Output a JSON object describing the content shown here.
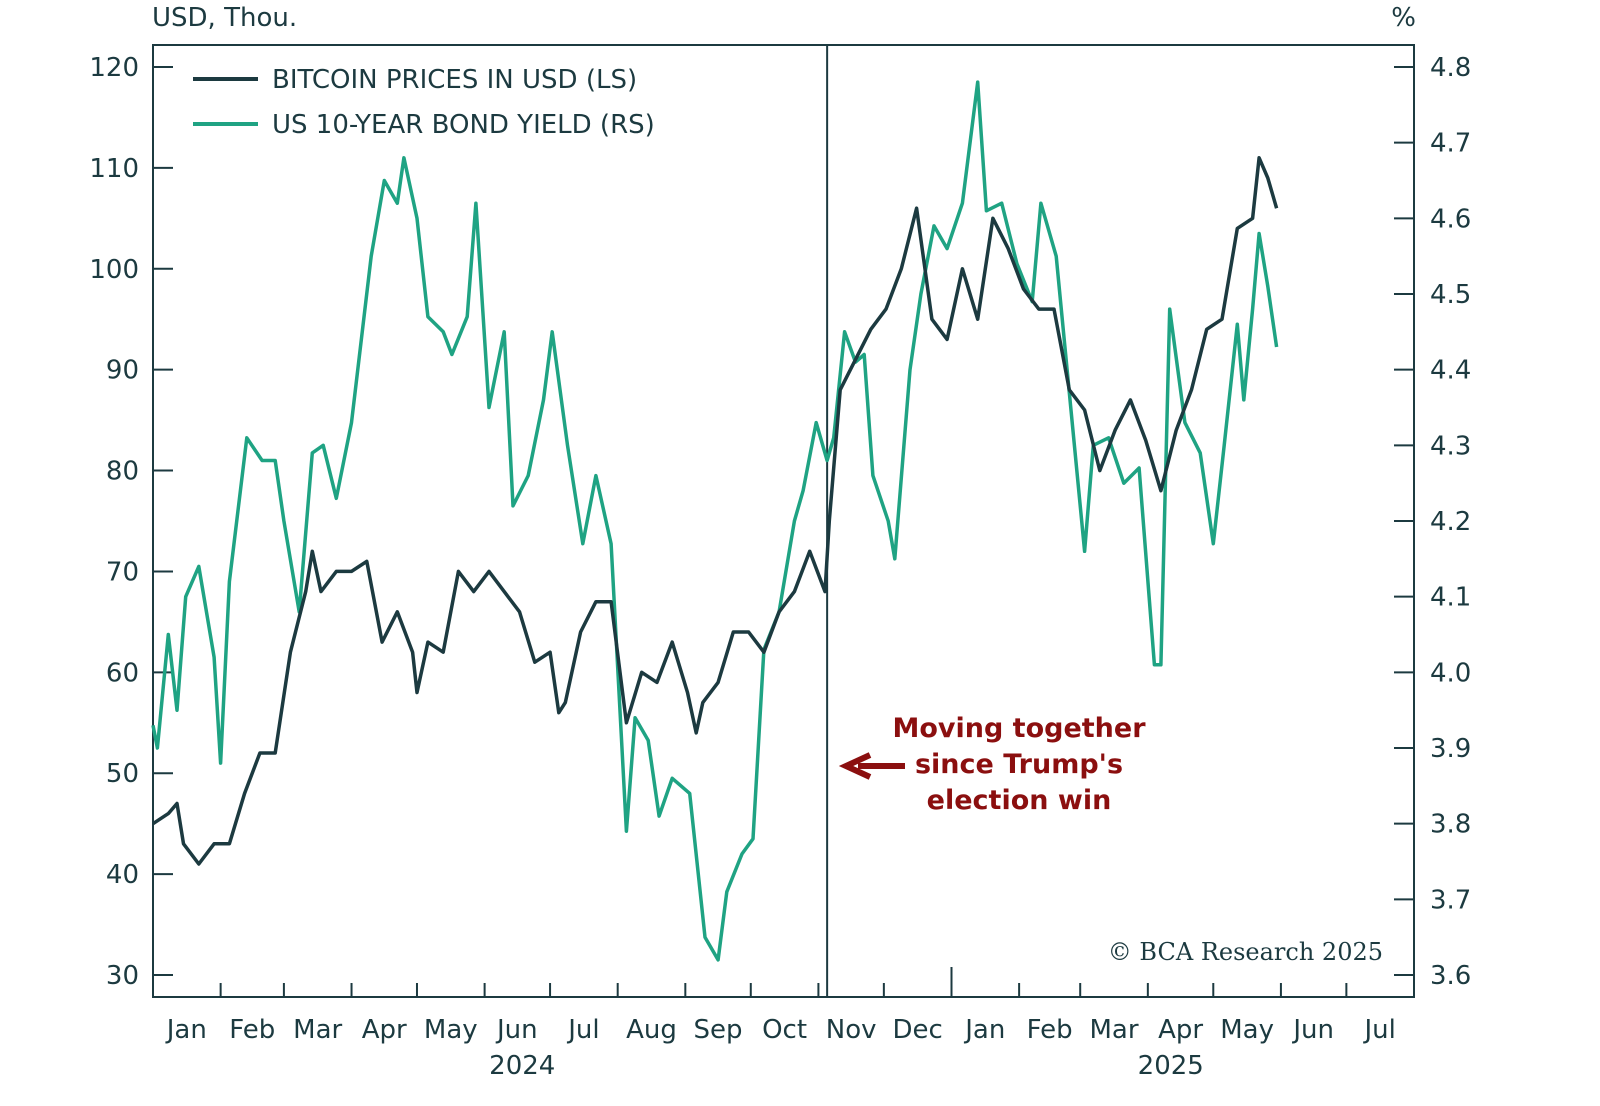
{
  "chart_data": {
    "type": "line",
    "title": "",
    "ylabel_left": "USD, Thou.",
    "ylabel_right": "%",
    "ylim_left": [
      30,
      120
    ],
    "yticks_left": [
      "30",
      "40",
      "50",
      "60",
      "70",
      "80",
      "90",
      "100",
      "110",
      "120"
    ],
    "ylim_right": [
      3.6,
      4.8
    ],
    "yticks_right": [
      "3.6",
      "3.7",
      "3.8",
      "3.9",
      "4.0",
      "4.1",
      "4.2",
      "4.3",
      "4.4",
      "4.5",
      "4.6",
      "4.7",
      "4.8"
    ],
    "xlim": [
      "2024-01-01",
      "2025-08-01"
    ],
    "xticks": [
      "Jan",
      "Feb",
      "Mar",
      "Apr",
      "May",
      "Jun",
      "Jul",
      "Aug",
      "Sep",
      "Oct",
      "Nov",
      "Dec",
      "Jan",
      "Feb",
      "Mar",
      "Apr",
      "May",
      "Jun",
      "Jul"
    ],
    "year_labels": [
      "2024",
      "2025"
    ],
    "grid": false,
    "legend_placement": "top-left",
    "vertical_marker_date": "2024-11-05",
    "annotation": [
      "Moving together",
      "since Trump's",
      "election win"
    ],
    "annotation_color": "#8b0f0f",
    "copyright": "© BCA Research 2025",
    "series": [
      {
        "name": "BITCOIN PRICES IN USD (LS)",
        "axis": "left",
        "color": "#1c3a40",
        "points": [
          [
            "2024-01-01",
            45
          ],
          [
            "2024-01-08",
            46
          ],
          [
            "2024-01-12",
            47
          ],
          [
            "2024-01-15",
            43
          ],
          [
            "2024-01-22",
            41
          ],
          [
            "2024-01-29",
            43
          ],
          [
            "2024-02-05",
            43
          ],
          [
            "2024-02-12",
            48
          ],
          [
            "2024-02-19",
            52
          ],
          [
            "2024-02-26",
            52
          ],
          [
            "2024-03-04",
            62
          ],
          [
            "2024-03-11",
            68
          ],
          [
            "2024-03-14",
            72
          ],
          [
            "2024-03-18",
            68
          ],
          [
            "2024-03-25",
            70
          ],
          [
            "2024-04-01",
            70
          ],
          [
            "2024-04-08",
            71
          ],
          [
            "2024-04-15",
            63
          ],
          [
            "2024-04-22",
            66
          ],
          [
            "2024-04-29",
            62
          ],
          [
            "2024-05-01",
            58
          ],
          [
            "2024-05-06",
            63
          ],
          [
            "2024-05-13",
            62
          ],
          [
            "2024-05-20",
            70
          ],
          [
            "2024-05-27",
            68
          ],
          [
            "2024-06-03",
            70
          ],
          [
            "2024-06-10",
            68
          ],
          [
            "2024-06-17",
            66
          ],
          [
            "2024-06-24",
            61
          ],
          [
            "2024-07-01",
            62
          ],
          [
            "2024-07-05",
            56
          ],
          [
            "2024-07-08",
            57
          ],
          [
            "2024-07-15",
            64
          ],
          [
            "2024-07-22",
            67
          ],
          [
            "2024-07-29",
            67
          ],
          [
            "2024-08-05",
            55
          ],
          [
            "2024-08-12",
            60
          ],
          [
            "2024-08-19",
            59
          ],
          [
            "2024-08-26",
            63
          ],
          [
            "2024-09-02",
            58
          ],
          [
            "2024-09-06",
            54
          ],
          [
            "2024-09-09",
            57
          ],
          [
            "2024-09-16",
            59
          ],
          [
            "2024-09-23",
            64
          ],
          [
            "2024-09-30",
            64
          ],
          [
            "2024-10-07",
            62
          ],
          [
            "2024-10-14",
            66
          ],
          [
            "2024-10-21",
            68
          ],
          [
            "2024-10-28",
            72
          ],
          [
            "2024-11-04",
            68
          ],
          [
            "2024-11-06",
            75
          ],
          [
            "2024-11-11",
            88
          ],
          [
            "2024-11-18",
            91
          ],
          [
            "2024-11-25",
            94
          ],
          [
            "2024-12-02",
            96
          ],
          [
            "2024-12-09",
            100
          ],
          [
            "2024-12-16",
            106
          ],
          [
            "2024-12-23",
            95
          ],
          [
            "2024-12-30",
            93
          ],
          [
            "2025-01-06",
            100
          ],
          [
            "2025-01-13",
            95
          ],
          [
            "2025-01-20",
            105
          ],
          [
            "2025-01-27",
            102
          ],
          [
            "2025-02-03",
            98
          ],
          [
            "2025-02-10",
            96
          ],
          [
            "2025-02-17",
            96
          ],
          [
            "2025-02-24",
            88
          ],
          [
            "2025-03-03",
            86
          ],
          [
            "2025-03-10",
            80
          ],
          [
            "2025-03-17",
            84
          ],
          [
            "2025-03-24",
            87
          ],
          [
            "2025-03-31",
            83
          ],
          [
            "2025-04-07",
            78
          ],
          [
            "2025-04-14",
            84
          ],
          [
            "2025-04-21",
            88
          ],
          [
            "2025-04-28",
            94
          ],
          [
            "2025-05-05",
            95
          ],
          [
            "2025-05-12",
            104
          ],
          [
            "2025-05-19",
            105
          ],
          [
            "2025-05-22",
            111
          ],
          [
            "2025-05-26",
            109
          ],
          [
            "2025-05-30",
            106
          ]
        ]
      },
      {
        "name": "US 10-YEAR BOND YIELD (RS)",
        "axis": "right",
        "color": "#1fa383",
        "points": [
          [
            "2024-01-01",
            3.93
          ],
          [
            "2024-01-03",
            3.9
          ],
          [
            "2024-01-08",
            4.05
          ],
          [
            "2024-01-12",
            3.95
          ],
          [
            "2024-01-16",
            4.1
          ],
          [
            "2024-01-22",
            4.14
          ],
          [
            "2024-01-29",
            4.02
          ],
          [
            "2024-02-01",
            3.88
          ],
          [
            "2024-02-05",
            4.12
          ],
          [
            "2024-02-13",
            4.31
          ],
          [
            "2024-02-20",
            4.28
          ],
          [
            "2024-02-26",
            4.28
          ],
          [
            "2024-03-01",
            4.2
          ],
          [
            "2024-03-08",
            4.08
          ],
          [
            "2024-03-14",
            4.29
          ],
          [
            "2024-03-19",
            4.3
          ],
          [
            "2024-03-25",
            4.23
          ],
          [
            "2024-04-01",
            4.33
          ],
          [
            "2024-04-10",
            4.55
          ],
          [
            "2024-04-16",
            4.65
          ],
          [
            "2024-04-22",
            4.62
          ],
          [
            "2024-04-25",
            4.68
          ],
          [
            "2024-05-01",
            4.6
          ],
          [
            "2024-05-06",
            4.47
          ],
          [
            "2024-05-13",
            4.45
          ],
          [
            "2024-05-17",
            4.42
          ],
          [
            "2024-05-24",
            4.47
          ],
          [
            "2024-05-28",
            4.62
          ],
          [
            "2024-06-03",
            4.35
          ],
          [
            "2024-06-10",
            4.45
          ],
          [
            "2024-06-14",
            4.22
          ],
          [
            "2024-06-21",
            4.26
          ],
          [
            "2024-06-28",
            4.36
          ],
          [
            "2024-07-02",
            4.45
          ],
          [
            "2024-07-09",
            4.3
          ],
          [
            "2024-07-16",
            4.17
          ],
          [
            "2024-07-22",
            4.26
          ],
          [
            "2024-07-29",
            4.17
          ],
          [
            "2024-08-05",
            3.79
          ],
          [
            "2024-08-09",
            3.94
          ],
          [
            "2024-08-15",
            3.91
          ],
          [
            "2024-08-20",
            3.81
          ],
          [
            "2024-08-26",
            3.86
          ],
          [
            "2024-09-03",
            3.84
          ],
          [
            "2024-09-10",
            3.65
          ],
          [
            "2024-09-16",
            3.62
          ],
          [
            "2024-09-20",
            3.71
          ],
          [
            "2024-09-27",
            3.76
          ],
          [
            "2024-10-02",
            3.78
          ],
          [
            "2024-10-07",
            4.03
          ],
          [
            "2024-10-14",
            4.08
          ],
          [
            "2024-10-21",
            4.2
          ],
          [
            "2024-10-25",
            4.24
          ],
          [
            "2024-10-31",
            4.33
          ],
          [
            "2024-11-05",
            4.28
          ],
          [
            "2024-11-08",
            4.31
          ],
          [
            "2024-11-13",
            4.45
          ],
          [
            "2024-11-18",
            4.41
          ],
          [
            "2024-11-22",
            4.42
          ],
          [
            "2024-11-26",
            4.26
          ],
          [
            "2024-12-03",
            4.2
          ],
          [
            "2024-12-06",
            4.15
          ],
          [
            "2024-12-13",
            4.4
          ],
          [
            "2024-12-18",
            4.5
          ],
          [
            "2024-12-24",
            4.59
          ],
          [
            "2024-12-30",
            4.56
          ],
          [
            "2025-01-06",
            4.62
          ],
          [
            "2025-01-13",
            4.78
          ],
          [
            "2025-01-17",
            4.61
          ],
          [
            "2025-01-24",
            4.62
          ],
          [
            "2025-01-31",
            4.54
          ],
          [
            "2025-02-07",
            4.49
          ],
          [
            "2025-02-11",
            4.62
          ],
          [
            "2025-02-18",
            4.55
          ],
          [
            "2025-02-24",
            4.37
          ],
          [
            "2025-03-03",
            4.16
          ],
          [
            "2025-03-07",
            4.3
          ],
          [
            "2025-03-14",
            4.31
          ],
          [
            "2025-03-21",
            4.25
          ],
          [
            "2025-03-28",
            4.27
          ],
          [
            "2025-04-04",
            4.01
          ],
          [
            "2025-04-07",
            4.01
          ],
          [
            "2025-04-11",
            4.48
          ],
          [
            "2025-04-18",
            4.33
          ],
          [
            "2025-04-25",
            4.29
          ],
          [
            "2025-05-01",
            4.17
          ],
          [
            "2025-05-06",
            4.3
          ],
          [
            "2025-05-12",
            4.46
          ],
          [
            "2025-05-15",
            4.36
          ],
          [
            "2025-05-19",
            4.48
          ],
          [
            "2025-05-22",
            4.58
          ],
          [
            "2025-05-26",
            4.51
          ],
          [
            "2025-05-30",
            4.43
          ]
        ]
      }
    ]
  }
}
